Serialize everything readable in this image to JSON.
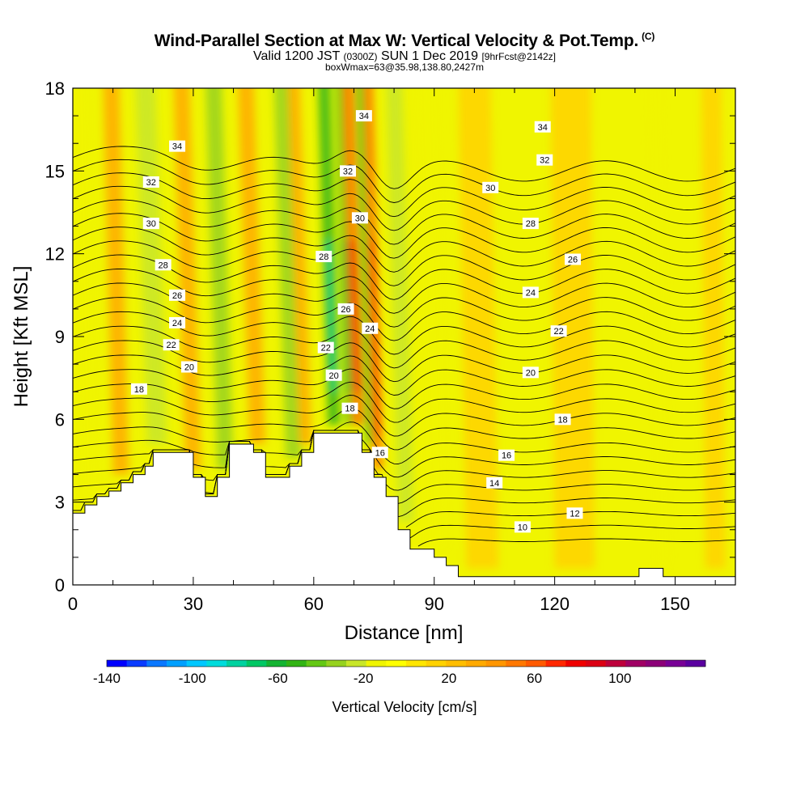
{
  "title": {
    "main": "Wind-Parallel Section at Max W: Vertical Velocity & Pot.Temp.",
    "copyright": "(C)",
    "valid_prefix": "Valid 1200 JST",
    "valid_utc": "(0300Z)",
    "valid_date": "SUN 1 Dec 2019",
    "forecast": "[9hrFcst@2142z]",
    "box": "boxWmax=63@35.98,138.80,2427m"
  },
  "chart_data": {
    "type": "heatmap",
    "xlabel": "Distance [nm]",
    "ylabel": "Height [Kft MSL]",
    "xlim": [
      0,
      165
    ],
    "ylim": [
      0,
      18
    ],
    "x_ticks": [
      0,
      30,
      60,
      90,
      120,
      150
    ],
    "y_ticks": [
      0,
      3,
      6,
      9,
      12,
      15,
      18
    ],
    "colorbar": {
      "label": "Vertical Velocity [cm/s]",
      "ticks": [
        -140,
        -100,
        -60,
        -20,
        20,
        60,
        100
      ],
      "range": [
        -140,
        140
      ],
      "colors": [
        "#0000ff",
        "#0a3cff",
        "#0a78ff",
        "#00a0ff",
        "#00c8ff",
        "#00dcdc",
        "#00d2a0",
        "#00c864",
        "#14b432",
        "#32b414",
        "#64c814",
        "#96d21e",
        "#c8e628",
        "#f0f500",
        "#ffff00",
        "#ffe600",
        "#ffd200",
        "#ffbe00",
        "#ffaa00",
        "#ff9600",
        "#ff7800",
        "#ff5a00",
        "#ff2800",
        "#f00000",
        "#dc0014",
        "#be003c",
        "#a00064",
        "#8c0078",
        "#780096",
        "#5a00a0"
      ]
    },
    "vertical_velocity_bands": [
      {
        "x": 4,
        "top_shift": 2,
        "width": 4,
        "value": -18
      },
      {
        "x": 21,
        "top_shift": 3,
        "width": 5,
        "value": -28
      },
      {
        "x": 38,
        "top_shift": 3,
        "width": 4,
        "value": -30
      },
      {
        "x": 55,
        "top_shift": 3,
        "width": 4,
        "value": -32
      },
      {
        "x": 65,
        "top_shift": 2.5,
        "width": 3,
        "value": -55
      },
      {
        "x": 69,
        "top_shift": 2.5,
        "width": 2.5,
        "value": -45
      },
      {
        "x": 74,
        "top_shift": 2.5,
        "width": 2.5,
        "value": -40
      },
      {
        "x": 83,
        "top_shift": 3,
        "width": 4,
        "value": -22
      },
      {
        "x": 91,
        "top_shift": 3,
        "width": 5,
        "value": -18
      },
      {
        "x": 147,
        "top_shift": 2,
        "width": 3,
        "value": -18
      },
      {
        "x": 12,
        "top_shift": 2.5,
        "width": 4,
        "value": 28
      },
      {
        "x": 30,
        "top_shift": 3,
        "width": 4,
        "value": 35
      },
      {
        "x": 46,
        "top_shift": 3,
        "width": 4,
        "value": 33
      },
      {
        "x": 58,
        "top_shift": 3,
        "width": 3,
        "value": 30
      },
      {
        "x": 71,
        "top_shift": 2.5,
        "width": 3,
        "value": 55
      },
      {
        "x": 76,
        "top_shift": 2.5,
        "width": 2.5,
        "value": 48
      },
      {
        "x": 102,
        "top_shift": 2,
        "width": 8,
        "value": 18
      },
      {
        "x": 125,
        "top_shift": 1,
        "width": 10,
        "value": 14
      },
      {
        "x": 160,
        "top_shift": 1,
        "width": 5,
        "value": 18
      }
    ],
    "potential_temperature": {
      "levels": [
        10,
        12,
        14,
        16,
        18,
        20,
        22,
        24,
        26,
        28,
        30,
        32,
        34
      ],
      "labels": [
        {
          "text": "34",
          "x": 26,
          "y": 15.9
        },
        {
          "text": "32",
          "x": 19.5,
          "y": 14.6
        },
        {
          "text": "30",
          "x": 19.5,
          "y": 13.1
        },
        {
          "text": "28",
          "x": 22.5,
          "y": 11.6
        },
        {
          "text": "26",
          "x": 26,
          "y": 10.5
        },
        {
          "text": "24",
          "x": 26,
          "y": 9.5
        },
        {
          "text": "22",
          "x": 24.5,
          "y": 8.7
        },
        {
          "text": "20",
          "x": 29,
          "y": 7.9
        },
        {
          "text": "18",
          "x": 16.5,
          "y": 7.1
        },
        {
          "text": "34",
          "x": 72.5,
          "y": 17.0
        },
        {
          "text": "32",
          "x": 68.5,
          "y": 15.0
        },
        {
          "text": "30",
          "x": 71.5,
          "y": 13.3
        },
        {
          "text": "28",
          "x": 62.5,
          "y": 11.9
        },
        {
          "text": "26",
          "x": 68,
          "y": 10.0
        },
        {
          "text": "24",
          "x": 74,
          "y": 9.3
        },
        {
          "text": "22",
          "x": 63,
          "y": 8.6
        },
        {
          "text": "20",
          "x": 65,
          "y": 7.6
        },
        {
          "text": "18",
          "x": 69,
          "y": 6.4
        },
        {
          "text": "16",
          "x": 76.5,
          "y": 4.8
        },
        {
          "text": "34",
          "x": 117,
          "y": 16.6
        },
        {
          "text": "32",
          "x": 117.5,
          "y": 15.4
        },
        {
          "text": "30",
          "x": 104,
          "y": 14.4
        },
        {
          "text": "28",
          "x": 114,
          "y": 13.1
        },
        {
          "text": "26",
          "x": 124.5,
          "y": 11.8
        },
        {
          "text": "24",
          "x": 114,
          "y": 10.6
        },
        {
          "text": "22",
          "x": 121,
          "y": 9.2
        },
        {
          "text": "20",
          "x": 114,
          "y": 7.7
        },
        {
          "text": "18",
          "x": 122,
          "y": 6.0
        },
        {
          "text": "16",
          "x": 108,
          "y": 4.7
        },
        {
          "text": "14",
          "x": 105,
          "y": 3.7
        },
        {
          "text": "12",
          "x": 125,
          "y": 2.6
        },
        {
          "text": "10",
          "x": 112,
          "y": 2.1
        }
      ]
    },
    "terrain_top": [
      [
        0,
        2.6
      ],
      [
        3,
        2.6
      ],
      [
        3,
        2.9
      ],
      [
        6,
        2.9
      ],
      [
        6,
        3.2
      ],
      [
        9,
        3.2
      ],
      [
        9,
        3.4
      ],
      [
        12,
        3.4
      ],
      [
        12,
        3.7
      ],
      [
        15,
        3.7
      ],
      [
        15,
        4.0
      ],
      [
        18,
        4.0
      ],
      [
        18,
        4.3
      ],
      [
        20,
        4.3
      ],
      [
        20,
        4.8
      ],
      [
        30,
        4.8
      ],
      [
        30,
        3.9
      ],
      [
        33,
        3.9
      ],
      [
        33,
        3.2
      ],
      [
        36,
        3.2
      ],
      [
        36,
        3.9
      ],
      [
        39,
        3.9
      ],
      [
        39,
        5.1
      ],
      [
        45,
        5.1
      ],
      [
        45,
        4.8
      ],
      [
        48,
        4.8
      ],
      [
        48,
        3.9
      ],
      [
        54,
        3.9
      ],
      [
        54,
        4.3
      ],
      [
        57,
        4.3
      ],
      [
        57,
        4.8
      ],
      [
        60,
        4.8
      ],
      [
        60,
        5.5
      ],
      [
        72,
        5.5
      ],
      [
        72,
        4.8
      ],
      [
        75,
        4.8
      ],
      [
        75,
        3.9
      ],
      [
        78,
        3.9
      ],
      [
        78,
        3.2
      ],
      [
        81,
        3.2
      ],
      [
        81,
        2.0
      ],
      [
        84,
        2.0
      ],
      [
        84,
        1.3
      ],
      [
        90,
        1.3
      ],
      [
        90,
        1.0
      ],
      [
        93,
        1.0
      ],
      [
        93,
        0.7
      ],
      [
        96,
        0.7
      ],
      [
        96,
        0.3
      ],
      [
        141,
        0.3
      ],
      [
        141,
        0.6
      ],
      [
        147,
        0.6
      ],
      [
        147,
        0.3
      ],
      [
        165,
        0.3
      ]
    ]
  }
}
